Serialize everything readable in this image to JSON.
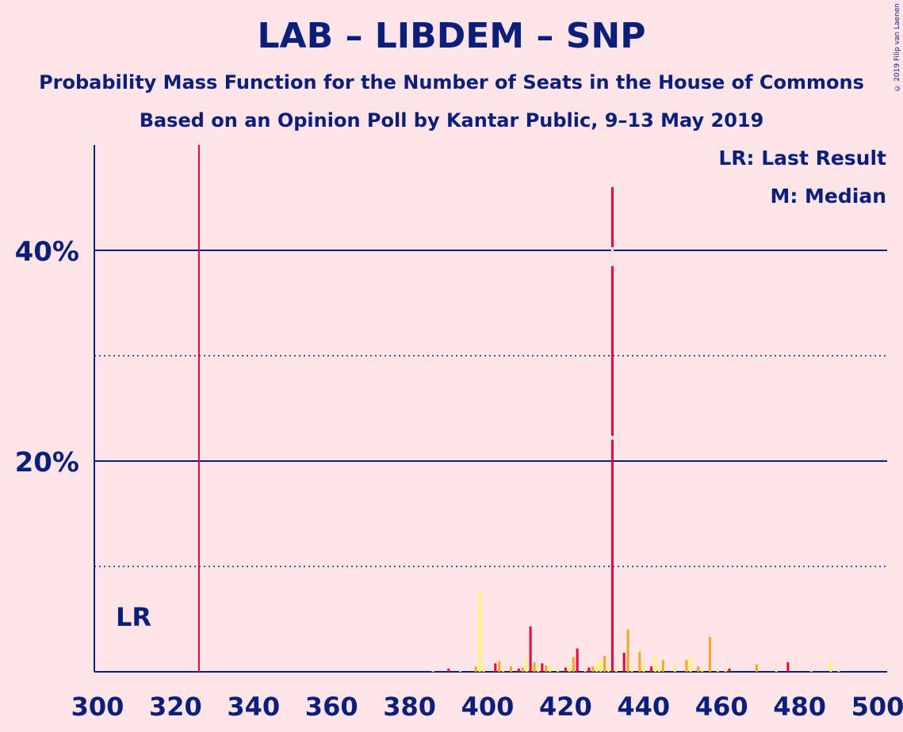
{
  "title": "LAB – LIBDEM – SNP",
  "subtitle1": "Probability Mass Function for the Number of Seats in the House of Commons",
  "subtitle2": "Based on an Opinion Poll by Kantar Public, 9–13 May 2019",
  "copyright": "© 2019 Filip van Laenen",
  "legend": {
    "lr": "LR: Last Result",
    "m": "M: Median"
  },
  "colors": {
    "background": "#ffe4e8",
    "axis": "#0b1f7a",
    "lab": "#e4003b",
    "libdem": "#faa61a",
    "snp": "#fff95d"
  },
  "chart_data": {
    "type": "bar",
    "xlim": [
      300,
      500
    ],
    "ylim": [
      0,
      50
    ],
    "x_ticks": [
      300,
      320,
      340,
      360,
      380,
      400,
      420,
      440,
      460,
      480,
      500
    ],
    "y_ticks": [
      {
        "value": 20,
        "label": "20%"
      },
      {
        "value": 40,
        "label": "40%"
      }
    ],
    "minor_gridlines": [
      10,
      30
    ],
    "last_result": {
      "seats": 326,
      "label": "LR"
    },
    "median": 432,
    "bars": [
      {
        "x": 386,
        "y": 0.1,
        "c": "snp"
      },
      {
        "x": 390,
        "y": 0.3,
        "c": "lab"
      },
      {
        "x": 393,
        "y": 0.1,
        "c": "snp"
      },
      {
        "x": 397,
        "y": 0.5,
        "c": "libdem"
      },
      {
        "x": 398,
        "y": 7.6,
        "c": "snp"
      },
      {
        "x": 399,
        "y": 0.5,
        "c": "snp"
      },
      {
        "x": 402,
        "y": 0.8,
        "c": "lab"
      },
      {
        "x": 403,
        "y": 1.0,
        "c": "libdem"
      },
      {
        "x": 404,
        "y": 0.2,
        "c": "snp"
      },
      {
        "x": 406,
        "y": 0.5,
        "c": "libdem"
      },
      {
        "x": 408,
        "y": 0.3,
        "c": "lab"
      },
      {
        "x": 409,
        "y": 0.4,
        "c": "libdem"
      },
      {
        "x": 410,
        "y": 1.3,
        "c": "snp"
      },
      {
        "x": 411,
        "y": 4.3,
        "c": "lab"
      },
      {
        "x": 412,
        "y": 0.9,
        "c": "libdem"
      },
      {
        "x": 413,
        "y": 0.6,
        "c": "snp"
      },
      {
        "x": 414,
        "y": 0.8,
        "c": "lab"
      },
      {
        "x": 415,
        "y": 0.6,
        "c": "libdem"
      },
      {
        "x": 416,
        "y": 0.6,
        "c": "snp"
      },
      {
        "x": 418,
        "y": 0.2,
        "c": "snp"
      },
      {
        "x": 420,
        "y": 0.4,
        "c": "lab"
      },
      {
        "x": 421,
        "y": 0.5,
        "c": "snp"
      },
      {
        "x": 422,
        "y": 1.4,
        "c": "libdem"
      },
      {
        "x": 423,
        "y": 2.2,
        "c": "lab"
      },
      {
        "x": 425,
        "y": 0.2,
        "c": "snp"
      },
      {
        "x": 426,
        "y": 0.4,
        "c": "lab"
      },
      {
        "x": 427,
        "y": 0.5,
        "c": "libdem"
      },
      {
        "x": 428,
        "y": 0.9,
        "c": "snp"
      },
      {
        "x": 429,
        "y": 1.1,
        "c": "snp"
      },
      {
        "x": 430,
        "y": 1.5,
        "c": "libdem"
      },
      {
        "x": 431,
        "y": 0.5,
        "c": "snp"
      },
      {
        "x": 432,
        "y": 46.0,
        "c": "lab"
      },
      {
        "x": 433,
        "y": 0.4,
        "c": "snp"
      },
      {
        "x": 435,
        "y": 1.8,
        "c": "lab"
      },
      {
        "x": 436,
        "y": 4.0,
        "c": "libdem"
      },
      {
        "x": 437,
        "y": 0.4,
        "c": "snp"
      },
      {
        "x": 439,
        "y": 1.9,
        "c": "libdem"
      },
      {
        "x": 440,
        "y": 0.7,
        "c": "snp"
      },
      {
        "x": 442,
        "y": 0.5,
        "c": "lab"
      },
      {
        "x": 443,
        "y": 1.5,
        "c": "snp"
      },
      {
        "x": 444,
        "y": 0.5,
        "c": "snp"
      },
      {
        "x": 445,
        "y": 1.1,
        "c": "libdem"
      },
      {
        "x": 448,
        "y": 0.5,
        "c": "snp"
      },
      {
        "x": 451,
        "y": 1.1,
        "c": "libdem"
      },
      {
        "x": 452,
        "y": 1.3,
        "c": "snp"
      },
      {
        "x": 454,
        "y": 0.5,
        "c": "libdem"
      },
      {
        "x": 455,
        "y": 0.3,
        "c": "snp"
      },
      {
        "x": 457,
        "y": 3.3,
        "c": "libdem"
      },
      {
        "x": 459,
        "y": 0.2,
        "c": "snp"
      },
      {
        "x": 461,
        "y": 0.2,
        "c": "snp"
      },
      {
        "x": 462,
        "y": 0.3,
        "c": "lab"
      },
      {
        "x": 469,
        "y": 0.7,
        "c": "libdem"
      },
      {
        "x": 474,
        "y": 0.1,
        "c": "snp"
      },
      {
        "x": 477,
        "y": 0.9,
        "c": "lab"
      },
      {
        "x": 483,
        "y": 0.2,
        "c": "snp"
      },
      {
        "x": 488,
        "y": 1.0,
        "c": "snp"
      },
      {
        "x": 490,
        "y": 0.2,
        "c": "snp"
      }
    ]
  }
}
